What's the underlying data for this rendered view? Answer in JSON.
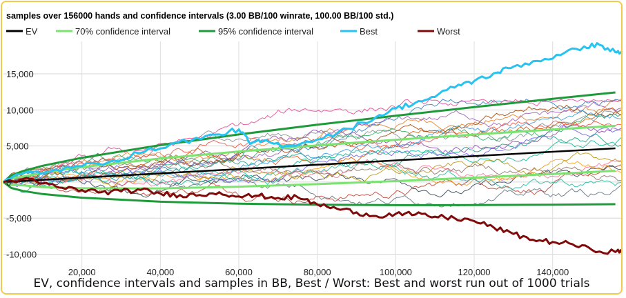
{
  "chart_data": {
    "type": "line",
    "title": "samples over 156000 hands and confidence intervals (3.00 BB/100 winrate, 100.00 BB/100 std.)",
    "caption": "EV, confidence intervals and samples in BB, Best / Worst: Best and worst run out of 1000 trials",
    "xlim": [
      0,
      158000
    ],
    "ylim": [
      -13300,
      19500
    ],
    "x_ticks": [
      20000,
      40000,
      60000,
      80000,
      100000,
      120000,
      140000
    ],
    "x_tick_labels": [
      "20,000",
      "40,000",
      "60,000",
      "80,000",
      "100,000",
      "120,000",
      "140,000"
    ],
    "y_ticks": [
      15000,
      10000,
      5000,
      0,
      -5000,
      -10000
    ],
    "y_tick_labels": [
      "15,000",
      "10,000",
      "5,000",
      "0",
      "-5,000",
      "-10,000"
    ],
    "grid": true,
    "legend_position": "top",
    "legend": [
      {
        "name": "EV",
        "color": "#000000"
      },
      {
        "name": "70% confidence interval",
        "color": "#7be36f"
      },
      {
        "name": "95% confidence interval",
        "color": "#1f9a3a"
      },
      {
        "name": "Best",
        "color": "#29c3f0"
      },
      {
        "name": "Worst",
        "color": "#7f0a0a"
      }
    ],
    "series": [
      {
        "name": "EV",
        "x": [
          0,
          156000
        ],
        "y": [
          0,
          4680
        ]
      },
      {
        "name": "70% confidence interval",
        "type": "band",
        "x": [
          0,
          2000,
          5000,
          10000,
          20000,
          40000,
          60000,
          80000,
          100000,
          120000,
          140000,
          156000
        ],
        "upper": [
          0,
          524,
          762,
          1300,
          2063,
          3276,
          4240,
          5088,
          5862,
          6590,
          7282,
          7800
        ],
        "lower": [
          0,
          -404,
          -462,
          -700,
          -863,
          -876,
          -640,
          -288,
          138,
          610,
          1118,
          1560
        ]
      },
      {
        "name": "95% confidence interval",
        "type": "band",
        "x": [
          0,
          2000,
          5000,
          10000,
          20000,
          40000,
          60000,
          80000,
          100000,
          120000,
          140000,
          156000
        ],
        "upper": [
          0,
          937,
          1536,
          2260,
          3372,
          5121,
          6601,
          7944,
          9198,
          10389,
          11533,
          12424
        ],
        "lower": [
          0,
          -817,
          -1236,
          -1660,
          -2172,
          -2721,
          -3001,
          -3144,
          -3198,
          -3189,
          -3133,
          -3064
        ]
      },
      {
        "name": "Best",
        "x": [
          0,
          5000,
          12000,
          20000,
          28000,
          36000,
          44000,
          48000,
          55000,
          60000,
          63000,
          66000,
          72000,
          80000,
          88000,
          95000,
          100000,
          105000,
          110000,
          116000,
          120000,
          126000,
          130000,
          136000,
          142000,
          148000,
          152000,
          156000,
          158000
        ],
        "y": [
          0,
          1200,
          1500,
          2200,
          3000,
          4200,
          5500,
          5800,
          6600,
          7300,
          5300,
          5700,
          5000,
          5900,
          7400,
          9000,
          10200,
          11000,
          11800,
          13500,
          14000,
          15200,
          16000,
          16800,
          17600,
          18800,
          19000,
          18000,
          18000
        ]
      },
      {
        "name": "Worst",
        "x": [
          0,
          5000,
          10000,
          15000,
          20000,
          25000,
          30000,
          35000,
          40000,
          45000,
          50000,
          55000,
          60000,
          65000,
          70000,
          75000,
          80000,
          85000,
          90000,
          95000,
          100000,
          105000,
          110000,
          115000,
          120000,
          125000,
          130000,
          135000,
          140000,
          145000,
          150000,
          156000,
          158000
        ],
        "y": [
          0,
          400,
          -200,
          -800,
          -1100,
          -1400,
          -1300,
          -1100,
          -1600,
          -1800,
          -1800,
          -1400,
          -2000,
          -1900,
          -2200,
          -2100,
          -3100,
          -3700,
          -4200,
          -4700,
          -4400,
          -4500,
          -4800,
          -5000,
          -5400,
          -6300,
          -7200,
          -8000,
          -8300,
          -8600,
          -9400,
          -9700,
          -9500
        ]
      }
    ]
  }
}
